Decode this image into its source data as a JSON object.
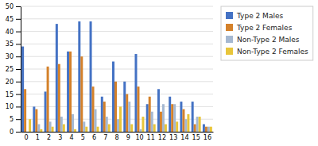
{
  "chart_data": {
    "type": "bar",
    "categories": [
      0,
      1,
      2,
      3,
      4,
      5,
      6,
      7,
      8,
      9,
      10,
      11,
      12,
      13,
      14,
      15,
      16
    ],
    "series": [
      {
        "name": "Type 2 Males",
        "color": "#4472c4",
        "values": [
          34,
          10,
          16,
          43,
          32,
          44,
          44,
          14,
          28,
          20,
          31,
          11,
          17,
          14,
          12,
          12,
          3
        ]
      },
      {
        "name": "Type 2 Females",
        "color": "#d4812a",
        "values": [
          17,
          9,
          26,
          27,
          32,
          30,
          18,
          12,
          20,
          15,
          18,
          14,
          8,
          11,
          9,
          3,
          2
        ]
      },
      {
        "name": "Non-Type 2 Males",
        "color": "#a5b8d1",
        "values": [
          0,
          3,
          4,
          6,
          7,
          4,
          9,
          6,
          5,
          12,
          1,
          8,
          11,
          11,
          5,
          6,
          2
        ]
      },
      {
        "name": "Non-Type 2 Females",
        "color": "#e8c53a",
        "values": [
          5,
          1,
          2,
          3,
          1,
          2,
          2,
          3,
          10,
          3,
          6,
          3,
          3,
          4,
          7,
          6,
          2
        ]
      }
    ],
    "ylim": [
      0,
      50
    ],
    "yticks": [
      0,
      5,
      10,
      15,
      20,
      25,
      30,
      35,
      40,
      45,
      50
    ],
    "grid": true,
    "legend": "right"
  }
}
